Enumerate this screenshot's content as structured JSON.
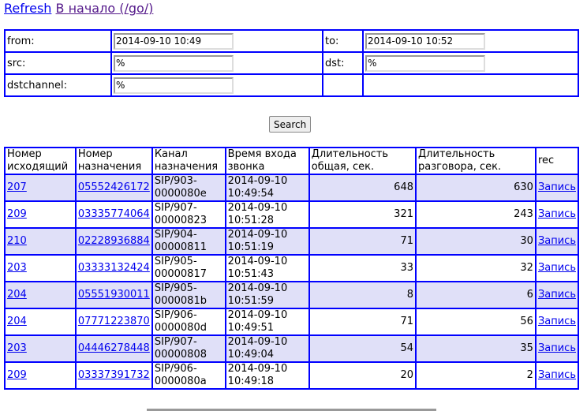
{
  "nav": {
    "refresh": "Refresh",
    "home": "В начало (/go/)"
  },
  "form": {
    "from_label": "from:",
    "from_value": "2014-09-10 10:49",
    "to_label": "to:",
    "to_value": "2014-09-10 10:52",
    "src_label": "src:",
    "src_value": "%",
    "dst_label": "dst:",
    "dst_value": "%",
    "dstchannel_label": "dstchannel:",
    "dstchannel_value": "%",
    "search": "Search"
  },
  "table": {
    "headers": [
      "Номер исходящий",
      "Номер назначения",
      "Канал назначения",
      "Время входа звонка",
      "Длительность общая, сек.",
      "Длительность разговора, сек.",
      "rec"
    ],
    "rows": [
      {
        "src": "207",
        "dst": "05552426172",
        "channel": "SIP/903-0000080e",
        "time": "2014-09-10 10:49:54",
        "total": "648",
        "talk": "630",
        "rec": "Запись"
      },
      {
        "src": "209",
        "dst": "03335774064",
        "channel": "SIP/907-00000823",
        "time": "2014-09-10 10:51:28",
        "total": "321",
        "talk": "243",
        "rec": "Запись"
      },
      {
        "src": "210",
        "dst": "02228936884",
        "channel": "SIP/904-00000811",
        "time": "2014-09-10 10:51:19",
        "total": "71",
        "talk": "30",
        "rec": "Запись"
      },
      {
        "src": "203",
        "dst": "03333132424",
        "channel": "SIP/905-00000817",
        "time": "2014-09-10 10:51:43",
        "total": "33",
        "talk": "32",
        "rec": "Запись"
      },
      {
        "src": "204",
        "dst": "05551930011",
        "channel": "SIP/905-0000081b",
        "time": "2014-09-10 10:51:59",
        "total": "8",
        "talk": "6",
        "rec": "Запись"
      },
      {
        "src": "204",
        "dst": "07771223870",
        "channel": "SIP/906-0000080d",
        "time": "2014-09-10 10:49:51",
        "total": "71",
        "talk": "56",
        "rec": "Запись"
      },
      {
        "src": "203",
        "dst": "04446278448",
        "channel": "SIP/907-00000808",
        "time": "2014-09-10 10:49:04",
        "total": "54",
        "talk": "35",
        "rec": "Запись"
      },
      {
        "src": "209",
        "dst": "03337391732",
        "channel": "SIP/906-0000080a",
        "time": "2014-09-10 10:49:18",
        "total": "20",
        "talk": "2",
        "rec": "Запись"
      }
    ]
  },
  "colors": {
    "cell_border": "#0000ff",
    "outer_border": "#800080",
    "row_alt": "#e0e0f8"
  }
}
